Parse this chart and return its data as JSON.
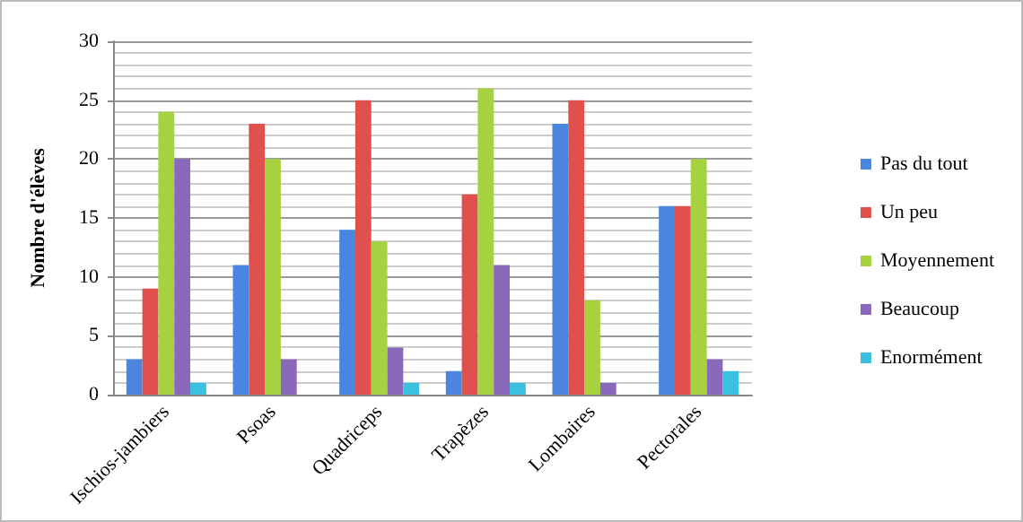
{
  "chart_data": {
    "type": "bar",
    "ylabel": "Nombre d'élèves",
    "categories": [
      "Ischios-jambiers",
      "Psoas",
      "Quadriceps",
      "Trapèzes",
      "Lombaires",
      "Pectorales"
    ],
    "series": [
      {
        "name": "Pas du tout",
        "color": "#4a86e0",
        "values": [
          3,
          11,
          14,
          2,
          23,
          16
        ]
      },
      {
        "name": "Un peu",
        "color": "#e0504c",
        "values": [
          9,
          23,
          25,
          17,
          25,
          16
        ]
      },
      {
        "name": "Moyennement",
        "color": "#a6d240",
        "values": [
          24,
          20,
          13,
          26,
          8,
          20
        ]
      },
      {
        "name": "Beaucoup",
        "color": "#8a68bc",
        "values": [
          20,
          3,
          4,
          11,
          1,
          3
        ]
      },
      {
        "name": "Enormément",
        "color": "#3cc0e0",
        "values": [
          1,
          0,
          1,
          1,
          0,
          2
        ]
      }
    ],
    "ylim": [
      0,
      30
    ],
    "yticks": [
      0,
      5,
      10,
      15,
      20,
      25,
      30
    ],
    "grid": true,
    "legend": "right"
  }
}
